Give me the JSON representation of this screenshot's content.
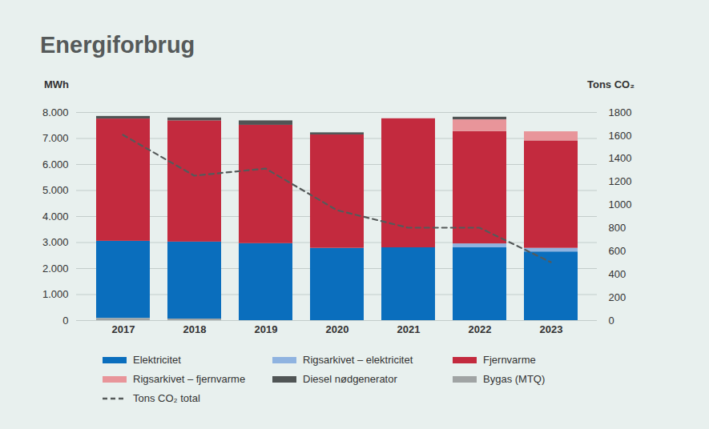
{
  "chart_data": {
    "type": "bar",
    "title": "Energiforbrug",
    "y_label": "MWh",
    "y2_label": "Tons CO₂",
    "stacked": true,
    "grid": true,
    "categories": [
      "2017",
      "2018",
      "2019",
      "2020",
      "2021",
      "2022",
      "2023"
    ],
    "ylim": [
      0,
      8000
    ],
    "yticks": [
      0,
      {
        "value": 1000,
        "label": "1.000"
      },
      {
        "value": 2000,
        "label": "2.000"
      },
      {
        "value": 3000,
        "label": "3.000"
      },
      {
        "value": 4000,
        "label": "4.000"
      },
      {
        "value": 5000,
        "label": "5.000"
      },
      {
        "value": 6000,
        "label": "6.000"
      },
      {
        "value": 7000,
        "label": "7.000"
      },
      {
        "value": 8000,
        "label": "8.000"
      }
    ],
    "y2lim": [
      0,
      1800
    ],
    "y2ticks": [
      0,
      200,
      400,
      600,
      800,
      1000,
      1200,
      1400,
      1600,
      1800
    ],
    "series": [
      {
        "name": "Elektricitet",
        "color": "#0a6ebd",
        "values": [
          2970,
          2960,
          2960,
          2780,
          2800,
          2800,
          2640
        ]
      },
      {
        "name": "Rigsarkivet – elektricitet",
        "color": "#8fb3e0",
        "values": [
          0,
          0,
          0,
          0,
          0,
          150,
          140
        ]
      },
      {
        "name": "Fjernvarme",
        "color": "#c32a3e",
        "values": [
          4700,
          4660,
          4550,
          4360,
          4960,
          4320,
          4130
        ]
      },
      {
        "name": "Rigsarkivet – fjernvarme",
        "color": "#e8959a",
        "values": [
          0,
          0,
          0,
          0,
          0,
          450,
          350
        ]
      },
      {
        "name": "Diesel nødgenerator",
        "color": "#505555",
        "values": [
          100,
          110,
          170,
          80,
          0,
          100,
          0
        ]
      },
      {
        "name": "Bygas (MTQ)",
        "color": "#a0a4a4",
        "values": [
          80,
          60,
          0,
          0,
          0,
          0,
          0
        ]
      },
      {
        "name": "Tons CO₂ total",
        "color": "#555a5a",
        "type": "line",
        "axis": "y2",
        "line_style": "dashed",
        "values": [
          1606,
          1253,
          1315,
          955,
          803,
          803,
          505
        ]
      }
    ]
  }
}
